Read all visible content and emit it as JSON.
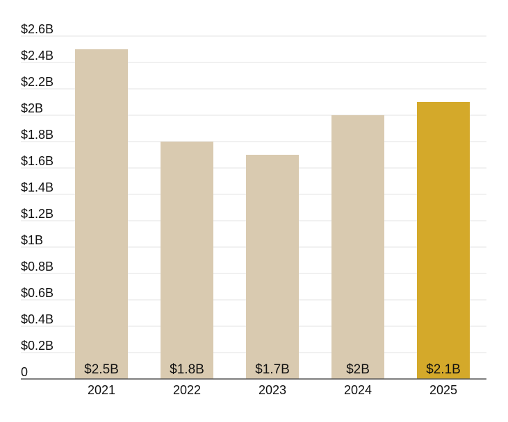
{
  "chart_data": {
    "type": "bar",
    "categories": [
      "2021",
      "2022",
      "2023",
      "2024",
      "2025"
    ],
    "values": [
      2.5,
      1.8,
      1.7,
      2.0,
      2.1
    ],
    "value_labels": [
      "$2.5B",
      "$1.8B",
      "$1.7B",
      "$2B",
      "$2.1B"
    ],
    "ylim": [
      0,
      2.6
    ],
    "y_ticks": [
      0,
      0.2,
      0.4,
      0.6,
      0.8,
      1.0,
      1.2,
      1.4,
      1.6,
      1.8,
      2.0,
      2.2,
      2.4,
      2.6
    ],
    "y_tick_labels": [
      "0",
      "$0.2B",
      "$0.4B",
      "$0.6B",
      "$0.8B",
      "$1B",
      "$1.2B",
      "$1.4B",
      "$1.6B",
      "$1.8B",
      "$2B",
      "$2.2B",
      "$2.4B",
      "$2.6B"
    ],
    "grid": true,
    "legend": "none",
    "colors": {
      "default_bar": "#d9cab0",
      "highlight_bar": "#d4a92a"
    },
    "highlight_category": "2025"
  }
}
